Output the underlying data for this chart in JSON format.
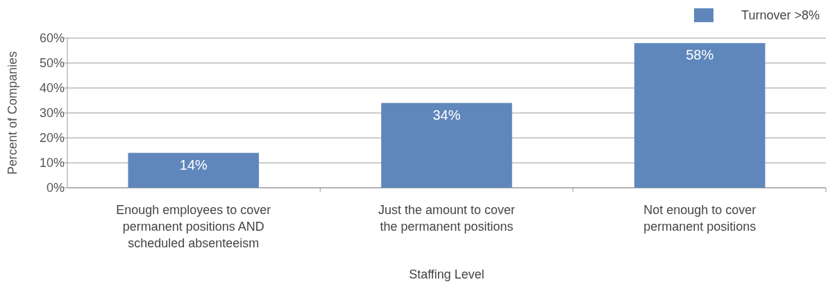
{
  "chart_data": {
    "type": "bar",
    "xlabel": "Staffing Level",
    "ylabel": "Percent of Companies",
    "categories": [
      "Enough employees to cover permanent positions AND scheduled absenteeism",
      "Just the amount to cover the permanent positions",
      "Not enough to cover permanent positions"
    ],
    "series": [
      {
        "name": "Turnover >8%",
        "color": "#5f87bb",
        "values": [
          14,
          34,
          58
        ]
      }
    ],
    "ylim": [
      0,
      60
    ],
    "yticks": [
      {
        "value": 0,
        "label": "0%"
      },
      {
        "value": 10,
        "label": "10%"
      },
      {
        "value": 20,
        "label": "20%"
      },
      {
        "value": 30,
        "label": "30%"
      },
      {
        "value": 40,
        "label": "40%"
      },
      {
        "value": 50,
        "label": "50%"
      },
      {
        "value": 60,
        "label": "60%"
      }
    ],
    "grid": "y",
    "legend": "top right",
    "value_labels": [
      "14%",
      "34%",
      "58%"
    ]
  }
}
